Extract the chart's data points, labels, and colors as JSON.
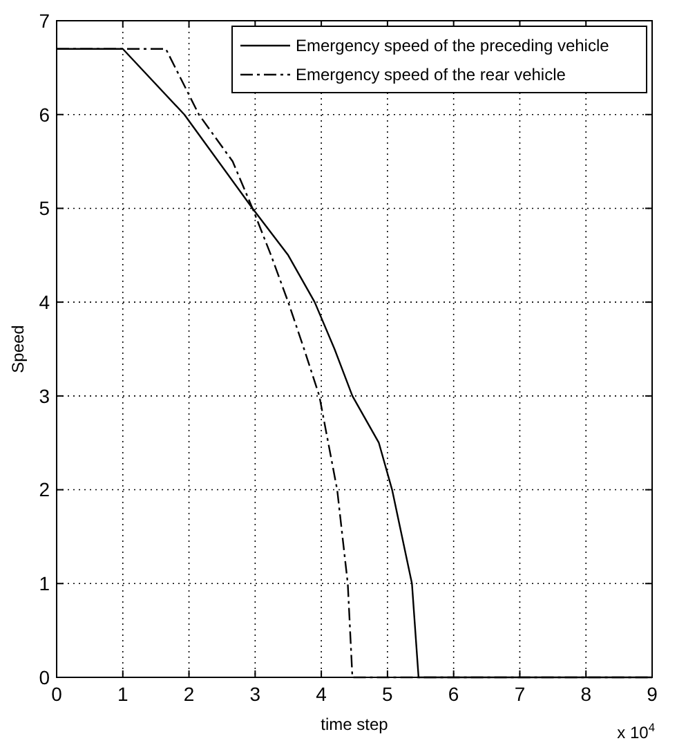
{
  "chart_data": {
    "type": "line",
    "xlabel": "time step",
    "ylabel": "Speed",
    "annotations": [
      "x 10$^{4}$"
    ],
    "xlim": [
      0,
      9
    ],
    "ylim": [
      0,
      7
    ],
    "xticks": [
      0,
      1,
      2,
      3,
      4,
      5,
      6,
      7,
      8,
      9
    ],
    "yticks": [
      0,
      1,
      2,
      3,
      4,
      5,
      6,
      7
    ],
    "grid": true,
    "legend": "top right",
    "series": [
      {
        "name": "Emergency speed of the preceding vehicle",
        "color": "#000000",
        "line_style": "solid",
        "x": [
          0,
          1,
          1.93,
          2.96,
          3.5,
          3.9,
          4.2,
          4.47,
          4.87,
          5.07,
          5.37,
          5.47,
          9
        ],
        "values": [
          6.7,
          6.7,
          6,
          5,
          4.5,
          4,
          3.5,
          3,
          2.5,
          2,
          1,
          0,
          0
        ]
      },
      {
        "name": "Emergency speed of the rear vehicle",
        "color": "#000000",
        "line_style": "dashed",
        "x": [
          0,
          1.65,
          2.15,
          2.66,
          2.96,
          3.24,
          3.5,
          3.74,
          3.97,
          4.24,
          4.4,
          4.47,
          9
        ],
        "values": [
          6.7,
          6.7,
          6,
          5.5,
          5,
          4.5,
          4,
          3.5,
          3,
          2,
          1,
          0,
          0
        ]
      }
    ]
  }
}
